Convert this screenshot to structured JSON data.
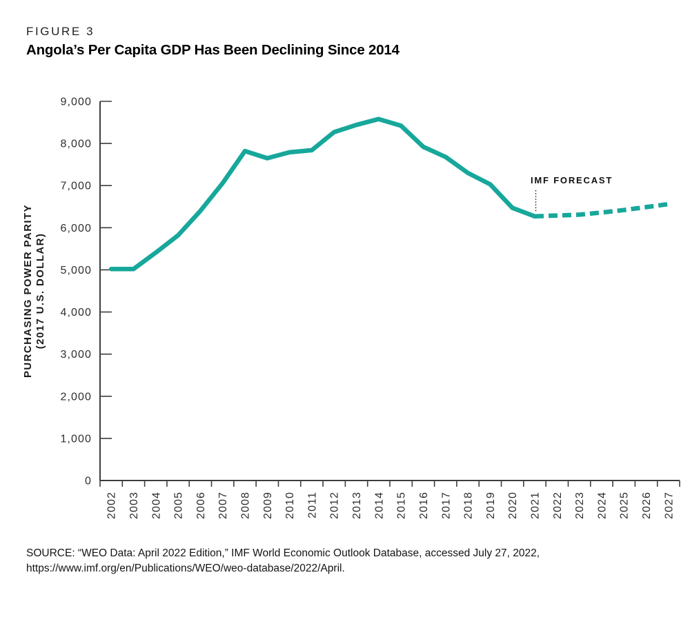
{
  "figure": {
    "label": "FIGURE 3",
    "title": "Angola’s Per Capita GDP Has Been Declining Since 2014"
  },
  "source": {
    "line1": "SOURCE: “WEO Data: April 2022 Edition,” IMF World Economic Outlook Database, accessed July 27, 2022,",
    "line2": "https://www.imf.org/en/Publications/WEO/weo-database/2022/April."
  },
  "chart_data": {
    "type": "line",
    "title": "Angola’s Per Capita GDP Has Been Declining Since 2014",
    "xlabel": "",
    "ylabel_line1": "PURCHASING POWER PARITY",
    "ylabel_line2": "(2017 U.S. DOLLAR)",
    "categories": [
      "2002",
      "2003",
      "2004",
      "2005",
      "2006",
      "2007",
      "2008",
      "2009",
      "2010",
      "2011",
      "2012",
      "2013",
      "2014",
      "2015",
      "2016",
      "2017",
      "2018",
      "2019",
      "2020",
      "2021",
      "2022",
      "2023",
      "2024",
      "2025",
      "2026",
      "2027"
    ],
    "series": [
      {
        "name": "historical",
        "style": "solid",
        "x": [
          2002,
          2003,
          2004,
          2005,
          2006,
          2007,
          2008,
          2009,
          2010,
          2011,
          2012,
          2013,
          2014,
          2015,
          2016,
          2017,
          2018,
          2019,
          2020,
          2021
        ],
        "values": [
          5020,
          5020,
          5410,
          5820,
          6400,
          7060,
          7820,
          7650,
          7790,
          7840,
          8270,
          8440,
          8580,
          8420,
          7920,
          7680,
          7300,
          7030,
          6470,
          6270
        ]
      },
      {
        "name": "imf-forecast",
        "style": "dashed",
        "x": [
          2021,
          2022,
          2023,
          2024,
          2025,
          2026,
          2027
        ],
        "values": [
          6270,
          6290,
          6310,
          6360,
          6420,
          6490,
          6560
        ]
      }
    ],
    "annotation": {
      "text": "IMF FORECAST",
      "x_year": 2021,
      "leader": "dotted-vertical"
    },
    "ylim": [
      0,
      9000
    ],
    "ytick_step": 1000,
    "ytick_labels": [
      "0",
      "1,000",
      "2,000",
      "3,000",
      "4,000",
      "5,000",
      "6,000",
      "7,000",
      "8,000",
      "9,000"
    ],
    "xlim": [
      2002,
      2027
    ],
    "grid": false,
    "legend": "none",
    "colors": {
      "line": "#17A79B",
      "axis": "#3d3d3d",
      "tick": "#3d3d3d",
      "tick_label": "#2e2e2e",
      "annotation": "#0f0f0f",
      "background": "#ffffff"
    }
  }
}
